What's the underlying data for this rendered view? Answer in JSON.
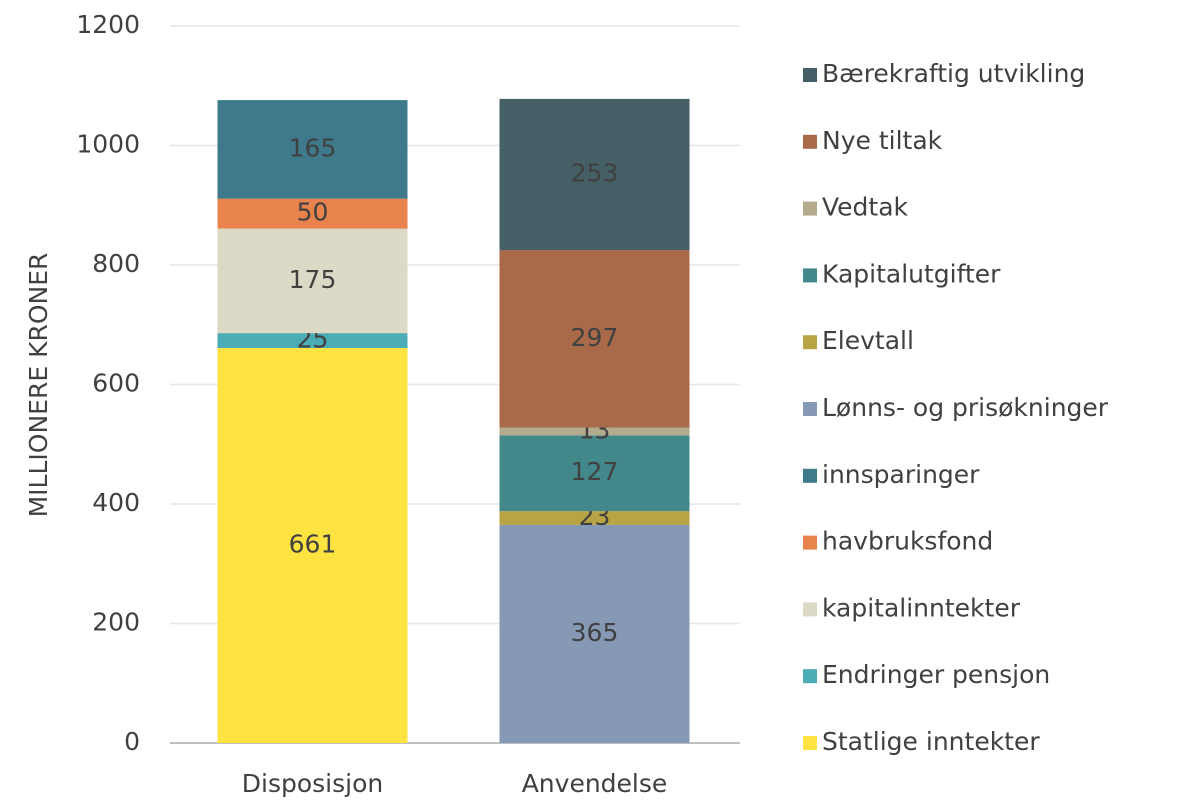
{
  "chart_data": {
    "type": "stacked_bar",
    "ylabel": "MILLIONERE KRONER",
    "categories": [
      "Disposisjon",
      "Anvendelse"
    ],
    "series": [
      {
        "name": "Statlige inntekter",
        "color": "#ffe340",
        "values": [
          661,
          null
        ]
      },
      {
        "name": "Endringer pensjon",
        "color": "#4bacb6",
        "values": [
          25,
          null
        ]
      },
      {
        "name": "kapitalinntekter",
        "color": "#dcd9c6",
        "values": [
          175,
          null
        ]
      },
      {
        "name": "havbruksfond",
        "color": "#e8834d",
        "values": [
          50,
          null
        ]
      },
      {
        "name": "innsparinger",
        "color": "#3e7a8c",
        "values": [
          165,
          null
        ]
      },
      {
        "name": "Lønns- og prisøkninger",
        "color": "#8599b5",
        "values": [
          null,
          365
        ]
      },
      {
        "name": "Elevtall",
        "color": "#b8a444",
        "values": [
          null,
          23
        ]
      },
      {
        "name": "Kapitalutgifter",
        "color": "#43888a",
        "values": [
          null,
          127
        ]
      },
      {
        "name": "Vedtak",
        "color": "#b3ab8c",
        "values": [
          null,
          13
        ]
      },
      {
        "name": "Nye tiltak",
        "color": "#a96a4a",
        "values": [
          null,
          297
        ]
      },
      {
        "name": "Bærekraftig utvikling",
        "color": "#455f66",
        "values": [
          null,
          253
        ]
      }
    ],
    "ylim": [
      0,
      1200
    ],
    "yticks": [
      0,
      200,
      400,
      600,
      800,
      1000,
      1200
    ],
    "grid": true,
    "legend": "right"
  }
}
